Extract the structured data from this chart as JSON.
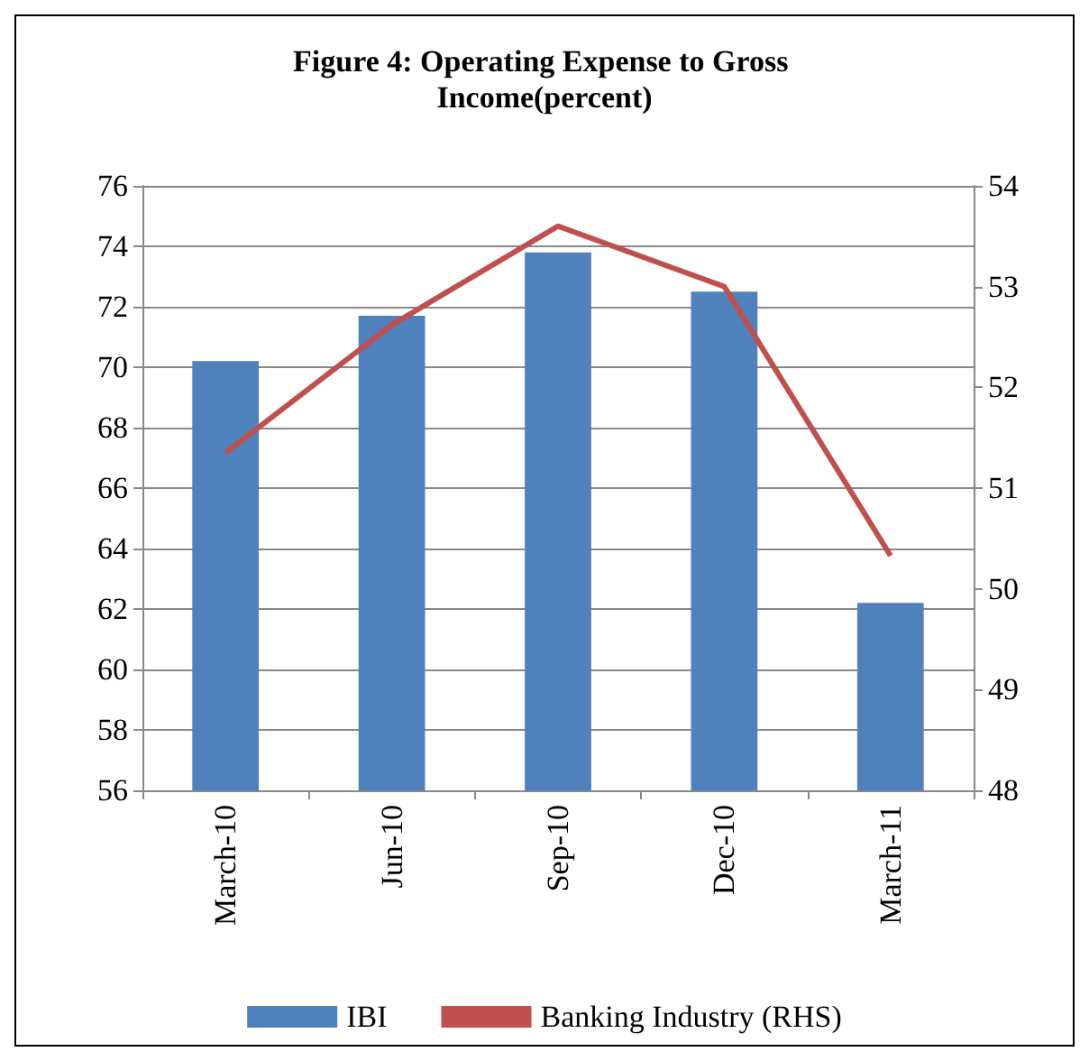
{
  "chart_data": {
    "type": "bar",
    "title": "Figure 4: Operating Expense to Gross Income(percent)",
    "categories": [
      "March-10",
      "Jun-10",
      "Sep-10",
      "Dec-10",
      "March-11"
    ],
    "series": [
      {
        "name": "IBI",
        "color": "#4f81bd",
        "values": [
          70.2,
          71.7,
          73.8,
          72.5,
          62.2
        ]
      },
      {
        "name": "Banking Industry (RHS)",
        "type": "line",
        "axis": "y2",
        "color": "#c0504d",
        "values": [
          51.35,
          52.62,
          53.6,
          53.0,
          50.33
        ]
      }
    ],
    "ylim": [
      56,
      76
    ],
    "yticks": [
      56,
      58,
      60,
      62,
      64,
      66,
      68,
      70,
      72,
      74,
      76
    ],
    "y2lim": [
      48,
      54
    ],
    "y2ticks": [
      48,
      49,
      50,
      51,
      52,
      53,
      54
    ],
    "grid": "y",
    "legend": "bottom",
    "marker": "none"
  }
}
